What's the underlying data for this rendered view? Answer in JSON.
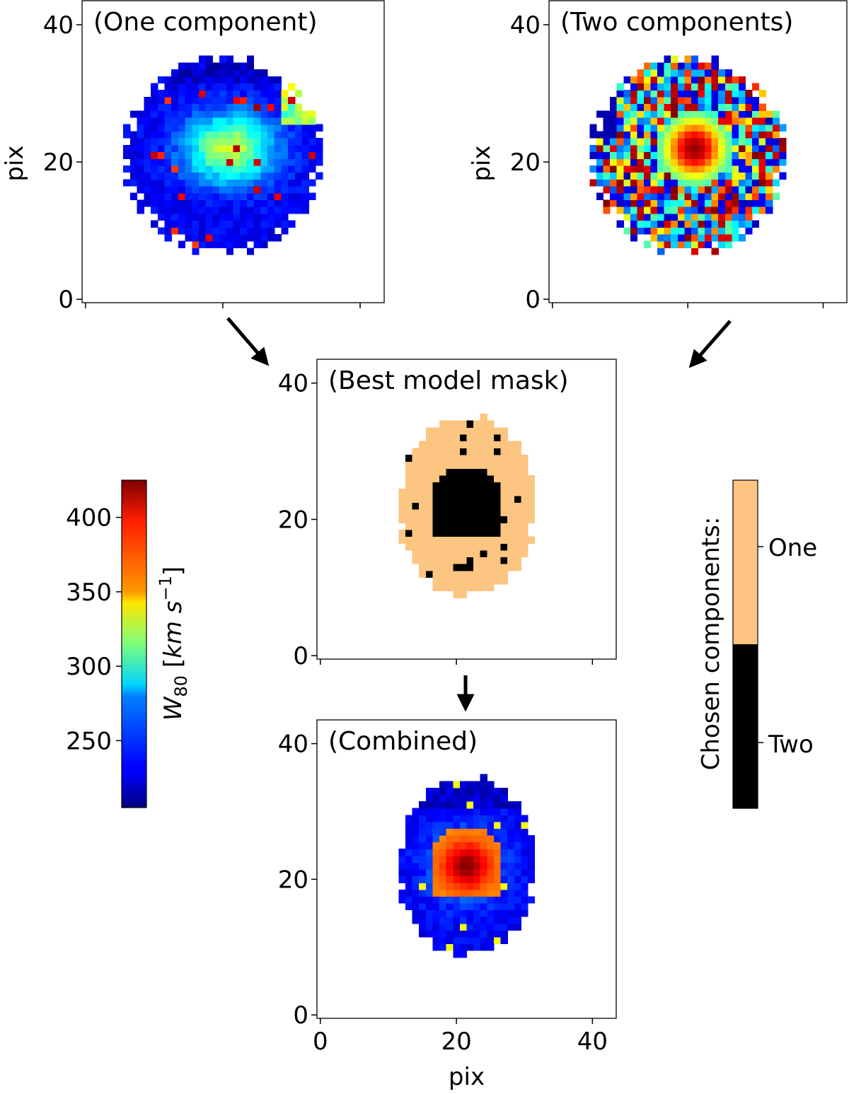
{
  "chart_data": [
    {
      "type": "heatmap",
      "id": "one",
      "title": "(One component)",
      "ylabel": "pix",
      "xlim": [
        -0.5,
        43.5
      ],
      "ylim": [
        -0.5,
        43.5
      ],
      "yticks": [
        0,
        20,
        40
      ],
      "xticks": [
        0,
        20,
        40
      ],
      "show_xticklabels": false,
      "colormap": "jet",
      "data_range": [
        205,
        425
      ]
    },
    {
      "type": "heatmap",
      "id": "two",
      "title": "(Two components)",
      "ylabel": "pix",
      "xlim": [
        -0.5,
        43.5
      ],
      "ylim": [
        -0.5,
        43.5
      ],
      "yticks": [
        0,
        20,
        40
      ],
      "xticks": [
        0,
        20,
        40
      ],
      "show_xticklabels": false,
      "colormap": "jet",
      "data_range": [
        205,
        425
      ]
    },
    {
      "type": "heatmap",
      "id": "mask",
      "title": "(Best model mask)",
      "xlim": [
        -0.5,
        43.5
      ],
      "ylim": [
        -0.5,
        43.5
      ],
      "yticks": [
        0,
        20,
        40
      ],
      "xticks": [
        0,
        20,
        40
      ],
      "show_xticklabels": false,
      "categories": [
        "Two",
        "One"
      ],
      "colors": {
        "One": "#fdc582",
        "Two": "#000000"
      }
    },
    {
      "type": "heatmap",
      "id": "combined",
      "title": "(Combined)",
      "xlabel": "pix",
      "xlim": [
        -0.5,
        43.5
      ],
      "ylim": [
        -0.5,
        43.5
      ],
      "yticks": [
        0,
        20,
        40
      ],
      "xticks": [
        0,
        20,
        40
      ],
      "show_xticklabels": true,
      "colormap": "jet",
      "data_range": [
        205,
        425
      ]
    }
  ],
  "colorbar_w80": {
    "label_main": "W",
    "label_sub": "80",
    "label_units_open": " [",
    "label_units_km": "km s",
    "label_units_exp": "−1",
    "label_units_close": "]",
    "ticks": [
      250,
      300,
      350,
      400
    ],
    "range": [
      205,
      425
    ],
    "colormap": "jet"
  },
  "colorbar_components": {
    "label": "Chosen components:",
    "ticks": [
      "One",
      "Two"
    ],
    "colors": {
      "One": "#fdc582",
      "Two": "#000000"
    }
  }
}
